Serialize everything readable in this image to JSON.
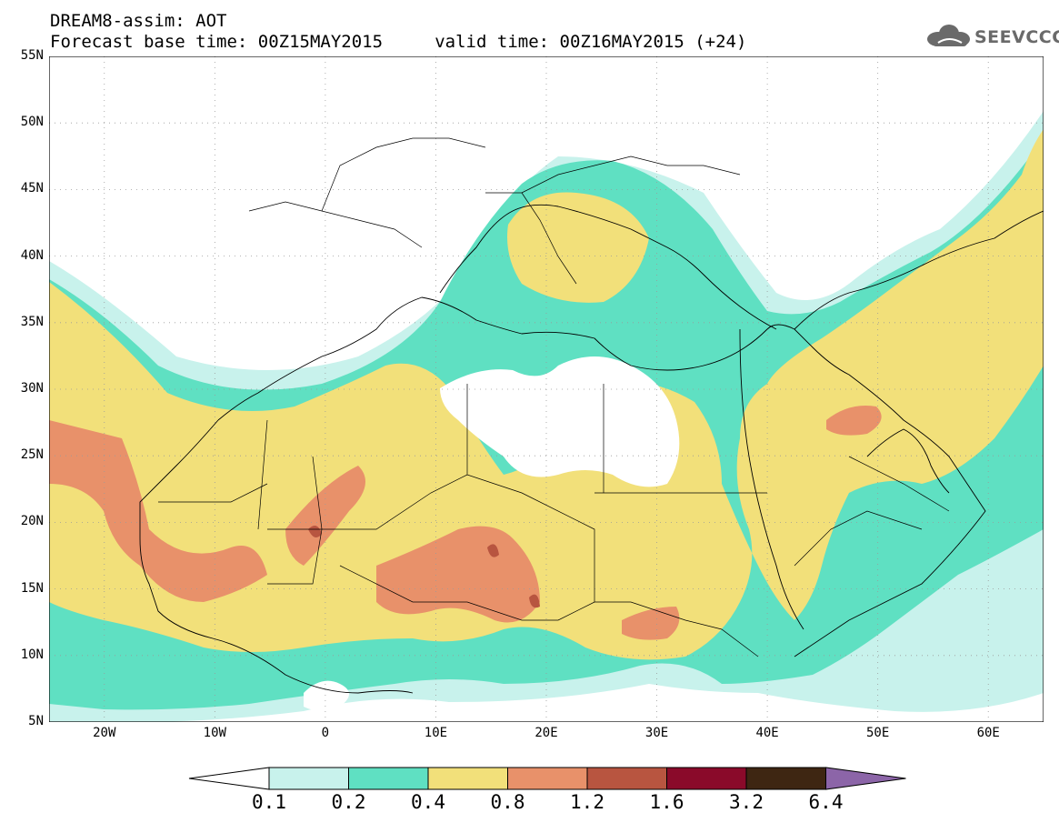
{
  "header": {
    "title_line1": "DREAM8-assim: AOT",
    "title_line2": "Forecast base time: 00Z15MAY2015     valid time: 00Z16MAY2015 (+24)"
  },
  "logo": {
    "text": "SEEVCCC",
    "icon": "cloud-icon",
    "color": "#6a6a6a"
  },
  "map": {
    "lat_range": [
      5,
      55
    ],
    "lon_range": [
      -25,
      65
    ],
    "lat_labels": [
      "55N",
      "50N",
      "45N",
      "40N",
      "35N",
      "30N",
      "25N",
      "20N",
      "15N",
      "10N",
      "5N"
    ],
    "lon_labels": [
      "20W",
      "10W",
      "0",
      "10E",
      "20E",
      "30E",
      "40E",
      "50E",
      "60E"
    ],
    "grid": true
  },
  "colorbar": {
    "colors": [
      "#c8f2ec",
      "#5fe0c2",
      "#f2e07a",
      "#e8916a",
      "#b85540",
      "#8a0a2a",
      "#3e2612",
      "#8c65a8"
    ],
    "tick_labels": [
      "0.1",
      "0.2",
      "0.4",
      "0.8",
      "1.2",
      "1.6",
      "3.2",
      "6.4"
    ]
  }
}
